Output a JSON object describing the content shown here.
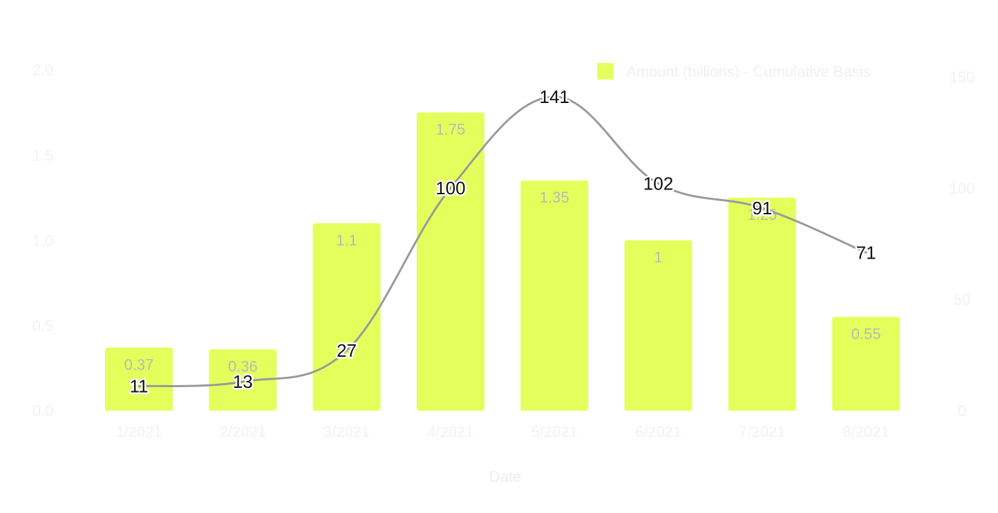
{
  "chart_data": {
    "type": "bar",
    "categories": [
      "1/2021",
      "2/2021",
      "3/2021",
      "4/2021",
      "5/2021",
      "6/2021",
      "7/2021",
      "8/2021"
    ],
    "series": [
      {
        "name": "Amount (billions) - Cumulative Basis",
        "type": "bar",
        "axis": "left",
        "values": [
          0.37,
          0.36,
          1.1,
          1.75,
          1.35,
          1,
          1.25,
          0.55
        ],
        "labels": [
          "0.37",
          "0.36",
          "1.1",
          "1.75",
          "1.35",
          "1",
          "1.25",
          "0.55"
        ],
        "color": "#e4ff5c"
      },
      {
        "type": "line",
        "axis": "right",
        "values": [
          11,
          13,
          27,
          100,
          141,
          102,
          91,
          71
        ],
        "labels": [
          "11",
          "13",
          "27",
          "100",
          "141",
          "102",
          "91",
          "71"
        ],
        "color": "#9a9a9a"
      }
    ],
    "y_left": {
      "ylim": [
        0,
        2.0
      ],
      "ticks": [
        "0.0",
        "0.5",
        "1.0",
        "1.5",
        "2.0"
      ]
    },
    "y_right": {
      "ylim": [
        0,
        150
      ],
      "ticks": [
        "0",
        "50",
        "100",
        "150"
      ]
    },
    "xlabel": "Date",
    "legend_position": "top-right",
    "grid": false
  }
}
